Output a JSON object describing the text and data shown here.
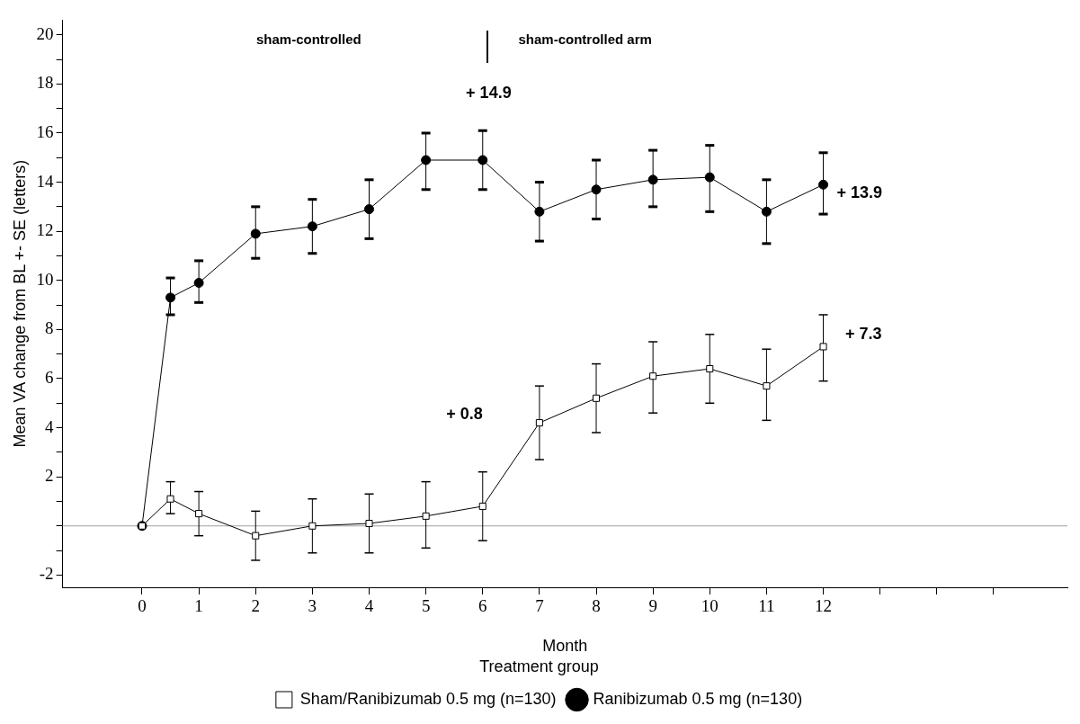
{
  "chart_data": {
    "type": "line",
    "xlabel": "Month",
    "ylabel": "Mean VA change from BL +- SE (letters)",
    "legend_title": "Treatment group",
    "legend": "bottom",
    "grid": false,
    "line_style": "solid",
    "xlim": [
      -1.4,
      16.3
    ],
    "ylim": [
      -2.5,
      20.6
    ],
    "xticks": [
      0,
      1,
      2,
      3,
      4,
      5,
      6,
      7,
      8,
      9,
      10,
      11,
      12,
      {
        "value": 13,
        "label": null
      },
      {
        "value": 14,
        "label": null
      },
      {
        "value": 15,
        "label": null
      }
    ],
    "yticks": [
      -2,
      {
        "value": -1,
        "label": null
      },
      {
        "value": 0,
        "label": null
      },
      {
        "value": 1,
        "label": null
      },
      2,
      {
        "value": 3,
        "label": null
      },
      4,
      {
        "value": 5,
        "label": null
      },
      6,
      {
        "value": 7,
        "label": null
      },
      8,
      {
        "value": 9,
        "label": null
      },
      10,
      {
        "value": 11,
        "label": null
      },
      12,
      {
        "value": 13,
        "label": null
      },
      14,
      {
        "value": 15,
        "label": null
      },
      16,
      {
        "value": 17,
        "label": null
      },
      18,
      {
        "value": 19,
        "label": null
      },
      20
    ],
    "x": [
      0,
      0.5,
      1,
      2,
      3,
      4,
      5,
      6,
      7,
      8,
      9,
      10,
      11,
      12
    ],
    "series": [
      {
        "name": "Sham/Ranibizumab 0.5 mg (n=130)",
        "color": "#000000",
        "marker": "square",
        "values": [
          0,
          1.1,
          0.5,
          -0.4,
          0,
          0.1,
          0.4,
          0.8,
          4.2,
          5.2,
          6.1,
          6.4,
          5.7,
          7.3
        ],
        "errors": [
          null,
          [
            0.5,
            1.8
          ],
          [
            -0.4,
            1.4
          ],
          [
            -1.4,
            0.6
          ],
          [
            -1.1,
            1.1
          ],
          [
            -1.1,
            1.3
          ],
          [
            -0.9,
            1.8
          ],
          [
            -0.6,
            2.2
          ],
          [
            2.7,
            5.7
          ],
          [
            3.8,
            6.6
          ],
          [
            4.6,
            7.5
          ],
          [
            5.0,
            7.8
          ],
          [
            4.3,
            7.2
          ],
          [
            5.9,
            8.6
          ]
        ]
      },
      {
        "name": "Ranibizumab 0.5 mg (n=130)",
        "color": "#000000",
        "marker": "circle",
        "values": [
          0,
          9.3,
          9.9,
          11.9,
          12.2,
          12.9,
          14.9,
          14.9,
          12.8,
          13.7,
          14.1,
          14.2,
          12.8,
          13.9
        ],
        "errors": [
          null,
          [
            8.6,
            10.1
          ],
          [
            9.1,
            10.8
          ],
          [
            10.9,
            13.0
          ],
          [
            11.1,
            13.3
          ],
          [
            11.7,
            14.1
          ],
          [
            13.7,
            16.0
          ],
          [
            13.7,
            16.1
          ],
          [
            11.6,
            14.0
          ],
          [
            12.5,
            14.9
          ],
          [
            13.0,
            15.3
          ],
          [
            12.8,
            15.5
          ],
          [
            11.5,
            14.1
          ],
          [
            12.7,
            15.2
          ]
        ]
      }
    ],
    "ref_lines": [
      {
        "axis": "y",
        "value": 0,
        "color": "#a0a0a0"
      }
    ],
    "annotations": [
      "sham-controlled",
      "sham-controlled arm",
      "+ 14.9",
      "+ 13.9",
      "+ 7.3",
      "+ 0.8"
    ]
  }
}
